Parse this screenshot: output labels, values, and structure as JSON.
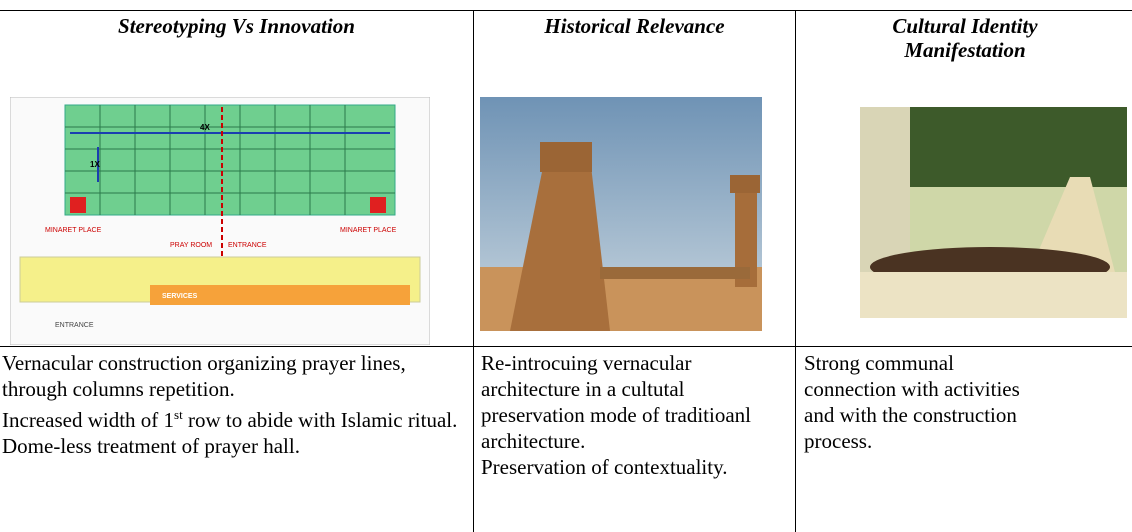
{
  "table": {
    "header": [
      "Stereotyping Vs Innovation",
      "Historical Relevance",
      "Cultural Identity Manifestation"
    ],
    "plan_labels": {
      "span_wide": "4X",
      "span_narrow": "1X",
      "minaret_left": "MINARET PLACE",
      "minaret_right": "MINARET PLACE",
      "pray_room": "PRAY ROOM",
      "entrance_main": "ENTRANCE",
      "services": "SERVICES",
      "entrance_side": "ENTRANCE"
    },
    "body": {
      "col0": {
        "p0": "Vernacular construction organizing prayer lines, through columns repetition.",
        "p1_start": "Increased width of 1",
        "p1_sup": "st",
        "p1_end": "row to abide with Islamic ritual.",
        "p2": "Dome-less treatment of prayer hall."
      },
      "col1": {
        "p0": "Re-introcuing vernacular architecture in a cultutal preservation mode of traditioanl architecture.",
        "p1": "Preservation of contextuality."
      },
      "col2": {
        "p0": "Strong communal connection with activities and with the construction process."
      }
    }
  }
}
